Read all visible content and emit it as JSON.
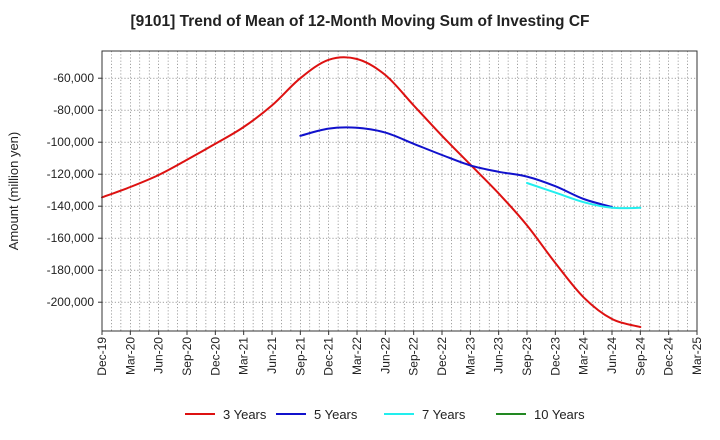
{
  "chart_data": {
    "type": "line",
    "title": "[9101]  Trend of Mean of 12-Month Moving Sum of Investing CF",
    "xlabel": "",
    "ylabel": "Amount (million yen)",
    "x_ticks": [
      "Dec-19",
      "Mar-20",
      "Jun-20",
      "Sep-20",
      "Dec-20",
      "Mar-21",
      "Jun-21",
      "Sep-21",
      "Dec-21",
      "Mar-22",
      "Jun-22",
      "Sep-22",
      "Dec-22",
      "Mar-23",
      "Jun-23",
      "Sep-23",
      "Dec-23",
      "Mar-24",
      "Jun-24",
      "Sep-24",
      "Dec-24",
      "Mar-25"
    ],
    "y_ticks": [
      -60000,
      -80000,
      -100000,
      -120000,
      -140000,
      -160000,
      -180000,
      -200000
    ],
    "y_tick_labels": [
      "-60,000",
      "-80,000",
      "-100,000",
      "-120,000",
      "-140,000",
      "-160,000",
      "-180,000",
      "-200,000"
    ],
    "ylim": [
      -218000,
      -43000
    ],
    "grid": true,
    "legend_position": "bottom",
    "series": [
      {
        "name": "3 Years",
        "color": "#dd1111",
        "x_start_index": 0,
        "values": [
          -134500,
          -128000,
          -120500,
          -111000,
          -101000,
          -90500,
          -77000,
          -60000,
          -48500,
          -48000,
          -58000,
          -77000,
          -96000,
          -114000,
          -132000,
          -152000,
          -175500,
          -197000,
          -210500,
          -215500
        ]
      },
      {
        "name": "5 Years",
        "color": "#1111cc",
        "x_start_index": 7,
        "values": [
          -96000,
          -91500,
          -91000,
          -94000,
          -101000,
          -108000,
          -114500,
          -118500,
          -121500,
          -127500,
          -135500,
          -140500
        ]
      },
      {
        "name": "7 Years",
        "color": "#22eeee",
        "x_start_index": 15,
        "values": [
          -125500,
          -131500,
          -137500,
          -141000,
          -141000
        ]
      },
      {
        "name": "10 Years",
        "color": "#228822",
        "x_start_index": 0,
        "values": []
      }
    ]
  }
}
